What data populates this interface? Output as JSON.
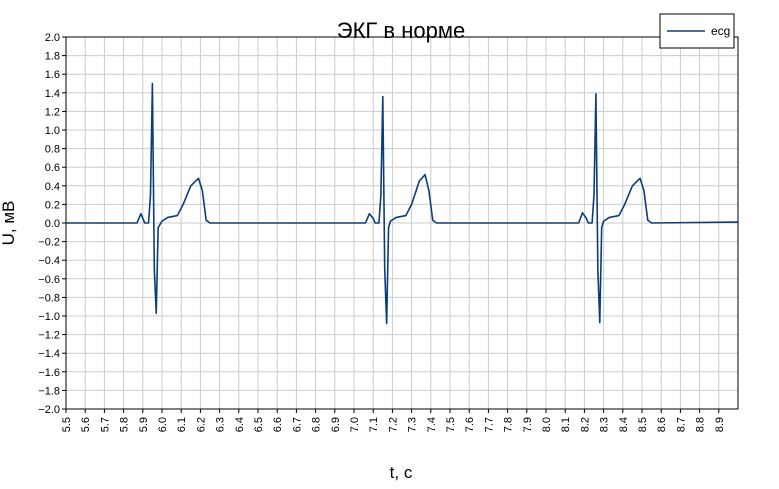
{
  "chart_data": {
    "type": "line",
    "title": "ЭКГ в норме",
    "xlabel": "t, c",
    "ylabel": "U, мВ",
    "xlim": [
      5.5,
      9.0
    ],
    "ylim": [
      -2.0,
      2.0
    ],
    "x_ticks": [
      5.5,
      5.6,
      5.7,
      5.8,
      5.9,
      6.0,
      6.1,
      6.2,
      6.3,
      6.4,
      6.5,
      6.6,
      6.7,
      6.8,
      6.9,
      7.0,
      7.1,
      7.2,
      7.3,
      7.4,
      7.5,
      7.6,
      7.7,
      7.8,
      7.9,
      8.0,
      8.1,
      8.2,
      8.3,
      8.4,
      8.5,
      8.6,
      8.7,
      8.8,
      8.9
    ],
    "x_tick_labels": [
      "5.5",
      "5.6",
      "5.7",
      "5.8",
      "5.9",
      "6.0",
      "6.1",
      "6.2",
      "6.3",
      "6.4",
      "6.5",
      "6.6",
      "6.7",
      "6.8",
      "6.9",
      "7.0",
      "7.1",
      "7.2",
      "7.3",
      "7.4",
      "7.5",
      "7.6",
      "7.7",
      "7.8",
      "7.9",
      "8.0",
      "8.1",
      "8.2",
      "8.3",
      "8.4",
      "8.5",
      "8.6",
      "8.7",
      "8.8",
      "8.9"
    ],
    "y_ticks": [
      2.0,
      1.8,
      1.6,
      1.4,
      1.2,
      1.0,
      0.8,
      0.6,
      0.4,
      0.2,
      0.0,
      -0.2,
      -0.4,
      -0.6,
      -0.8,
      -1.0,
      -1.2,
      -1.4,
      -1.6,
      -1.8,
      -2.0
    ],
    "y_tick_labels": [
      "2.0",
      "1.8",
      "1.6",
      "1.4",
      "1.2",
      "1.0",
      "0.8",
      "0.6",
      "0.4",
      "0.2",
      "0.0",
      "−0.2",
      "−0.4",
      "−0.6",
      "−0.8",
      "−1.0",
      "−1.2",
      "−1.4",
      "−1.6",
      "−1.8",
      "−2.0"
    ],
    "grid": true,
    "legend_position": "top-right",
    "series": [
      {
        "name": "ecg",
        "color": "#0b3d7a",
        "x": [
          5.5,
          5.87,
          5.89,
          5.9,
          5.91,
          5.93,
          5.94,
          5.95,
          5.96,
          5.97,
          5.98,
          6.0,
          6.03,
          6.08,
          6.11,
          6.15,
          6.19,
          6.21,
          6.23,
          6.25,
          7.06,
          7.08,
          7.1,
          7.11,
          7.13,
          7.14,
          7.15,
          7.16,
          7.17,
          7.18,
          7.19,
          7.22,
          7.27,
          7.3,
          7.34,
          7.37,
          7.39,
          7.41,
          7.43,
          8.17,
          8.19,
          8.21,
          8.22,
          8.24,
          8.25,
          8.26,
          8.27,
          8.28,
          8.29,
          8.3,
          8.33,
          8.38,
          8.41,
          8.45,
          8.49,
          8.51,
          8.53,
          8.55,
          9.0
        ],
        "y": [
          0.0,
          0.0,
          0.1,
          0.05,
          0.0,
          0.0,
          0.3,
          1.5,
          -0.5,
          -0.97,
          -0.05,
          0.02,
          0.06,
          0.08,
          0.2,
          0.4,
          0.48,
          0.35,
          0.03,
          0.0,
          0.0,
          0.1,
          0.05,
          0.0,
          0.0,
          0.3,
          1.36,
          -0.5,
          -1.08,
          -0.05,
          0.02,
          0.06,
          0.08,
          0.2,
          0.45,
          0.52,
          0.35,
          0.03,
          0.0,
          0.0,
          0.11,
          0.05,
          0.0,
          0.0,
          0.3,
          1.39,
          -0.5,
          -1.07,
          -0.05,
          0.02,
          0.06,
          0.08,
          0.2,
          0.4,
          0.48,
          0.35,
          0.03,
          0.0,
          0.01
        ]
      }
    ]
  }
}
